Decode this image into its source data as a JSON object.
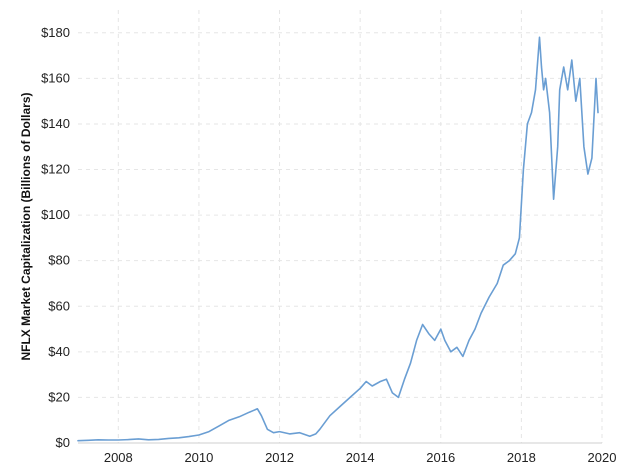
{
  "chart_data": {
    "type": "line",
    "title": "",
    "xlabel": "",
    "ylabel": "NFLX Market Capitalization (Billions of Dollars)",
    "xlim": [
      2007.0,
      2020.0
    ],
    "ylim": [
      0,
      190
    ],
    "x_ticks": [
      2008,
      2010,
      2012,
      2014,
      2016,
      2018,
      2020
    ],
    "x_tick_labels": [
      "2008",
      "2010",
      "2012",
      "2014",
      "2016",
      "2018",
      "2020"
    ],
    "y_ticks": [
      0,
      20,
      40,
      60,
      80,
      100,
      120,
      140,
      160,
      180
    ],
    "y_tick_labels": [
      "$0",
      "$20",
      "$40",
      "$60",
      "$80",
      "$100",
      "$120",
      "$140",
      "$160",
      "$180"
    ],
    "grid": true,
    "legend": "none",
    "colors": {
      "line": "#6a9ed3",
      "grid": "#e6e6e6"
    },
    "series": [
      {
        "x": [
          2007.0,
          2007.25,
          2007.5,
          2007.75,
          2008.0,
          2008.25,
          2008.5,
          2008.75,
          2009.0,
          2009.25,
          2009.5,
          2009.75,
          2010.0,
          2010.25,
          2010.5,
          2010.75,
          2011.0,
          2011.25,
          2011.45,
          2011.55,
          2011.7,
          2011.85,
          2012.0,
          2012.25,
          2012.5,
          2012.75,
          2012.9,
          2013.0,
          2013.25,
          2013.5,
          2013.75,
          2014.0,
          2014.15,
          2014.3,
          2014.5,
          2014.65,
          2014.8,
          2014.95,
          2015.1,
          2015.25,
          2015.4,
          2015.55,
          2015.7,
          2015.85,
          2016.0,
          2016.1,
          2016.25,
          2016.4,
          2016.55,
          2016.7,
          2016.85,
          2017.0,
          2017.2,
          2017.4,
          2017.55,
          2017.7,
          2017.85,
          2017.95,
          2018.05,
          2018.15,
          2018.25,
          2018.35,
          2018.45,
          2018.5,
          2018.55,
          2018.6,
          2018.7,
          2018.8,
          2018.9,
          2018.95,
          2019.05,
          2019.15,
          2019.25,
          2019.35,
          2019.45,
          2019.55,
          2019.65,
          2019.75,
          2019.85,
          2019.9
        ],
        "values": [
          1.0,
          1.2,
          1.4,
          1.3,
          1.3,
          1.5,
          1.8,
          1.4,
          1.6,
          2.0,
          2.3,
          2.8,
          3.5,
          5.0,
          7.5,
          10.0,
          11.5,
          13.5,
          15.0,
          12.0,
          6.0,
          4.5,
          5.0,
          4.0,
          4.5,
          3.0,
          4.0,
          6.0,
          12.0,
          16.0,
          20.0,
          24.0,
          27.0,
          25.0,
          27.0,
          28.0,
          22.0,
          20.0,
          28.0,
          35.0,
          45.0,
          52.0,
          48.0,
          45.0,
          50.0,
          45.0,
          40.0,
          42.0,
          38.0,
          45.0,
          50.0,
          57.0,
          64.0,
          70.0,
          78.0,
          80.0,
          83.0,
          90.0,
          120.0,
          140.0,
          145.0,
          155.0,
          178.0,
          165.0,
          155.0,
          160.0,
          145.0,
          107.0,
          130.0,
          155.0,
          165.0,
          155.0,
          168.0,
          150.0,
          160.0,
          130.0,
          118.0,
          125.0,
          160.0,
          145.0
        ]
      }
    ]
  }
}
